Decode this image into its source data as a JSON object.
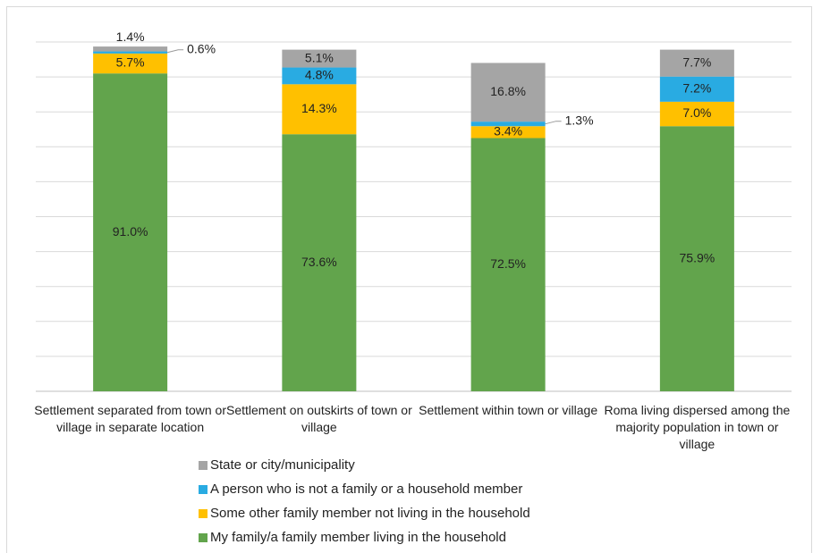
{
  "chart_data": {
    "type": "bar",
    "stacked": true,
    "categories": [
      "Settlement separated from town or village in separate location",
      "Settlement on outskirts of town or village",
      "Settlement within town or village",
      "Roma living dispersed among the majority population in town or village"
    ],
    "series": [
      {
        "name": "My family/a family member living in the household",
        "color": "#62a44c",
        "values": [
          91.0,
          73.6,
          72.5,
          75.9
        ],
        "value_labels": [
          "91.0%",
          "73.6%",
          "72.5%",
          "75.9%"
        ]
      },
      {
        "name": "Some other family member not living in the household",
        "color": "#ffc000",
        "values": [
          5.7,
          14.3,
          3.4,
          7.0
        ],
        "value_labels": [
          "5.7%",
          "14.3%",
          "3.4%",
          "7.0%"
        ]
      },
      {
        "name": "A person who is not a family or a household member",
        "color": "#29abe2",
        "values": [
          0.6,
          4.8,
          1.3,
          7.2
        ],
        "value_labels": [
          "0.6%",
          "4.8%",
          "1.3%",
          "7.2%"
        ]
      },
      {
        "name": "State or city/municipality",
        "color": "#a5a5a5",
        "values": [
          1.4,
          5.1,
          16.8,
          7.7
        ],
        "value_labels": [
          "1.4%",
          "5.1%",
          "16.8%",
          "7.7%"
        ]
      }
    ],
    "ylim": [
      0,
      100
    ],
    "yticks": [
      0,
      10,
      20,
      30,
      40,
      50,
      60,
      70,
      80,
      90,
      100
    ],
    "grid": true
  }
}
